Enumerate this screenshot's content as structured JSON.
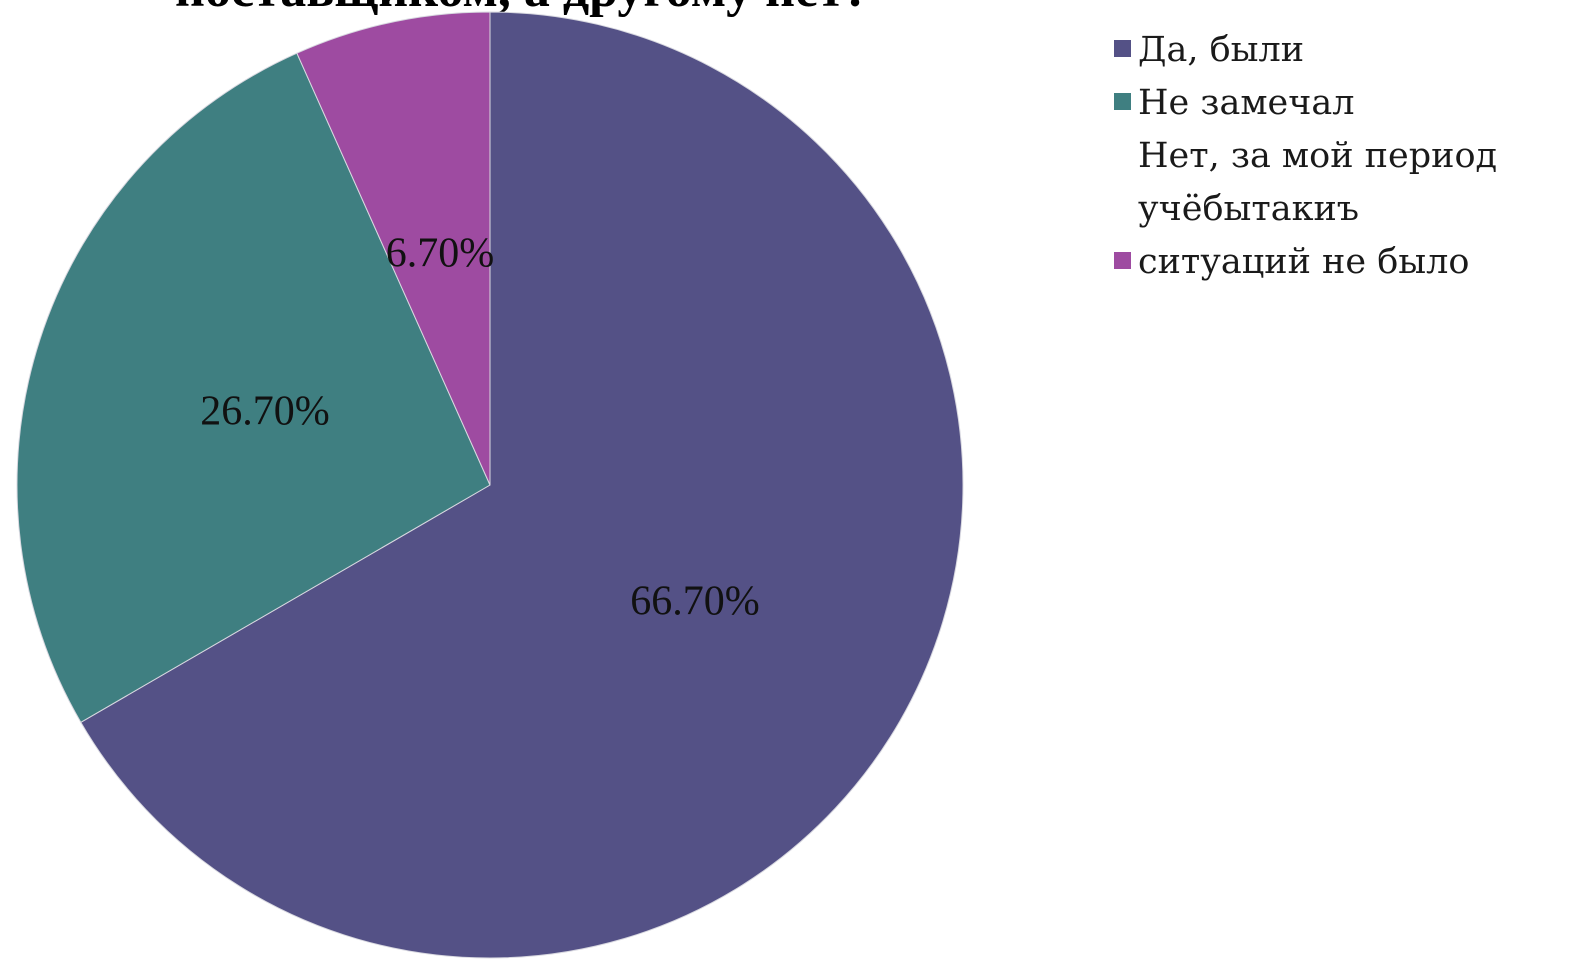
{
  "chart_data": {
    "type": "pie",
    "title": "поставщиком, а другому нет?",
    "series": [
      {
        "name": "Да, были",
        "value": 66.7,
        "label": "66.70%",
        "color": "#545186"
      },
      {
        "name": "Не замечал",
        "value": 26.7,
        "label": "26.70%",
        "color": "#3f7f81"
      },
      {
        "name": "Нет, за мой период\nучёбытакиъ\nситуаций не было",
        "value": 6.7,
        "label": "6.70%",
        "color": "#9e4ba1"
      }
    ],
    "legend_position": "right",
    "start_angle_deg": 0,
    "direction": "clockwise"
  }
}
